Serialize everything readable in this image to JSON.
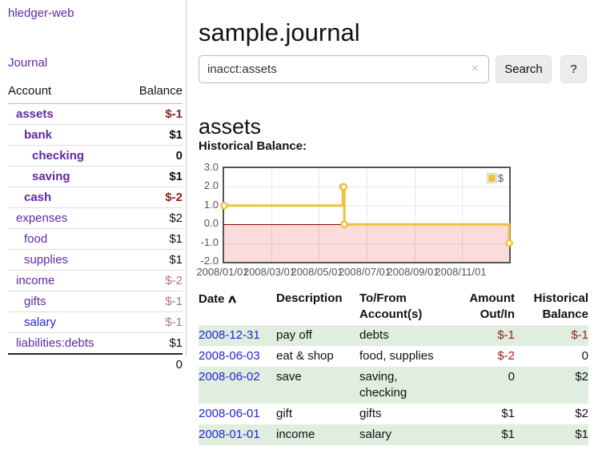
{
  "app": {
    "brand": "hledger-web"
  },
  "sidebar": {
    "journal_link": "Journal",
    "accounts": {
      "col_account": "Account",
      "col_balance": "Balance",
      "rows": [
        {
          "name": "assets",
          "balance": "$-1",
          "indent": 1,
          "bold": true,
          "link_color": "purple",
          "balance_style": "neg-strong"
        },
        {
          "name": "bank",
          "balance": "$1",
          "indent": 2,
          "bold": true,
          "link_color": "purple",
          "balance_style": "bold"
        },
        {
          "name": "checking",
          "balance": "0",
          "indent": 3,
          "bold": true,
          "link_color": "purple",
          "balance_style": "bold"
        },
        {
          "name": "saving",
          "balance": "$1",
          "indent": 3,
          "bold": true,
          "link_color": "purple",
          "balance_style": "bold"
        },
        {
          "name": "cash",
          "balance": "$-2",
          "indent": 2,
          "bold": true,
          "link_color": "purple",
          "balance_style": "neg-strong"
        },
        {
          "name": "expenses",
          "balance": "$2",
          "indent": 1,
          "bold": false,
          "link_color": "purple",
          "balance_style": "plain"
        },
        {
          "name": "food",
          "balance": "$1",
          "indent": 2,
          "bold": false,
          "link_color": "purple",
          "balance_style": "plain"
        },
        {
          "name": "supplies",
          "balance": "$1",
          "indent": 2,
          "bold": false,
          "link_color": "purple",
          "balance_style": "plain"
        },
        {
          "name": "income",
          "balance": "$-2",
          "indent": 1,
          "bold": false,
          "link_color": "purple",
          "balance_style": "neg-soft"
        },
        {
          "name": "gifts",
          "balance": "$-1",
          "indent": 2,
          "bold": false,
          "link_color": "purple",
          "balance_style": "neg-soft"
        },
        {
          "name": "salary",
          "balance": "$-1",
          "indent": 2,
          "bold": false,
          "link_color": "blue",
          "balance_style": "neg-soft"
        },
        {
          "name": "liabilities:debts",
          "balance": "$1",
          "indent": 1,
          "bold": false,
          "link_color": "purple",
          "balance_style": "plain"
        }
      ],
      "total": "0"
    }
  },
  "main": {
    "title": "sample.journal",
    "search": {
      "value": "inacct:assets",
      "clear_icon": "×",
      "search_button": "Search",
      "help_button": "?"
    },
    "account_heading": "assets",
    "chart_title": "Historical Balance:"
  },
  "chart_data": {
    "type": "line",
    "style": "step",
    "title": "Historical Balance",
    "series": [
      {
        "name": "$",
        "color": "#edc240",
        "points": [
          {
            "date": "2008-01-01",
            "value": 1
          },
          {
            "date": "2008-06-01",
            "value": 2
          },
          {
            "date": "2008-06-02",
            "value": 2
          },
          {
            "date": "2008-06-03",
            "value": 0
          },
          {
            "date": "2008-12-31",
            "value": -1
          }
        ]
      }
    ],
    "x_range": [
      "2008-01-01",
      "2008-12-31"
    ],
    "ylim": [
      -2,
      3
    ],
    "y_ticks": [
      "3.0",
      "2.0",
      "1.0",
      "0.0",
      "-1.0",
      "-2.0"
    ],
    "x_ticks": [
      {
        "label": "2008/01/01",
        "date": "2008-01-01"
      },
      {
        "label": "2008/03/01",
        "date": "2008-03-01"
      },
      {
        "label": "2008/05/01",
        "date": "2008-05-01"
      },
      {
        "label": "2008/07/01",
        "date": "2008-07-01"
      },
      {
        "label": "2008/09/01",
        "date": "2008-09-01"
      },
      {
        "label": "2008/11/01",
        "date": "2008-11-01"
      }
    ],
    "legend": {
      "label": "$",
      "position": "top-right",
      "swatch_color": "#edc240"
    },
    "colors": {
      "negative_fill": "#fbdbdb",
      "zero_line": "#8b0000",
      "grid": "rgba(0,0,0,0.09)",
      "border": "#545454"
    },
    "grid": true
  },
  "register": {
    "headers": {
      "date": "Date",
      "sort_icon": "∧",
      "description": "Description",
      "accounts": "To/From Account(s)",
      "amount": "Amount Out/In",
      "balance": "Historical Balance"
    },
    "rows": [
      {
        "date": "2008-12-31",
        "description": "pay off",
        "accounts": "debts",
        "amount": "$-1",
        "amount_negative": true,
        "balance": "$-1",
        "balance_negative": true
      },
      {
        "date": "2008-06-03",
        "description": "eat & shop",
        "accounts": "food, supplies",
        "amount": "$-2",
        "amount_negative": true,
        "balance": "0",
        "balance_negative": false
      },
      {
        "date": "2008-06-02",
        "description": "save",
        "accounts": "saving, checking",
        "amount": "0",
        "amount_negative": false,
        "balance": "$2",
        "balance_negative": false
      },
      {
        "date": "2008-06-01",
        "description": "gift",
        "accounts": "gifts",
        "amount": "$1",
        "amount_negative": false,
        "balance": "$2",
        "balance_negative": false
      },
      {
        "date": "2008-01-01",
        "description": "income",
        "accounts": "salary",
        "amount": "$1",
        "amount_negative": false,
        "balance": "$1",
        "balance_negative": false
      }
    ]
  }
}
